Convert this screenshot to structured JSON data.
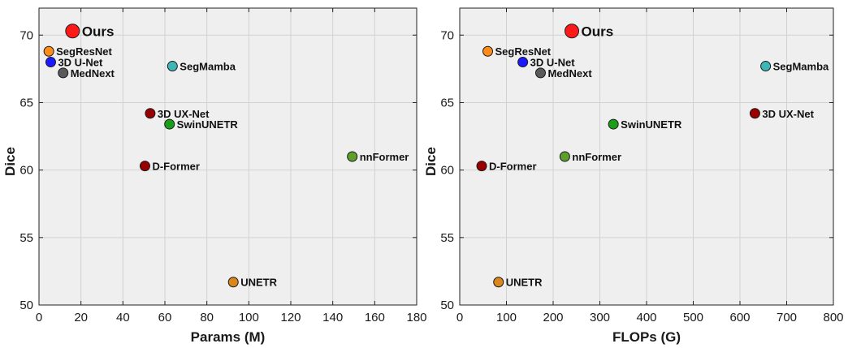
{
  "chart_data": [
    {
      "type": "scatter",
      "xlabel": "Params (M)",
      "ylabel": "Dice",
      "xlim": [
        0,
        180
      ],
      "ylim": [
        50,
        72
      ],
      "xticks": [
        0,
        20,
        40,
        60,
        80,
        100,
        120,
        140,
        160,
        180
      ],
      "yticks": [
        50,
        55,
        60,
        65,
        70
      ],
      "grid": true,
      "background": "#efefef",
      "points": [
        {
          "label": "Ours",
          "x": 16,
          "y": 70.3,
          "color": "#ff1a1a",
          "highlight": true
        },
        {
          "label": "SegResNet",
          "x": 4.7,
          "y": 68.8,
          "color": "#ff8c1a"
        },
        {
          "label": "3D U-Net",
          "x": 5.6,
          "y": 68.0,
          "color": "#1a1aff"
        },
        {
          "label": "MedNext",
          "x": 11.5,
          "y": 67.2,
          "color": "#5a5a5a"
        },
        {
          "label": "SegMamba",
          "x": 63.6,
          "y": 67.7,
          "color": "#3fb6b6"
        },
        {
          "label": "3D UX-Net",
          "x": 53.0,
          "y": 64.2,
          "color": "#990000"
        },
        {
          "label": "SwinUNETR",
          "x": 62.2,
          "y": 63.4,
          "color": "#1a9e1a"
        },
        {
          "label": "nnFormer",
          "x": 149.3,
          "y": 61.0,
          "color": "#5e9e2a"
        },
        {
          "label": "D-Former",
          "x": 50.5,
          "y": 60.3,
          "color": "#990000"
        },
        {
          "label": "UNETR",
          "x": 92.6,
          "y": 51.7,
          "color": "#d9861a"
        }
      ]
    },
    {
      "type": "scatter",
      "xlabel": "FLOPs (G)",
      "ylabel": "Dice",
      "xlim": [
        0,
        800
      ],
      "ylim": [
        50,
        72
      ],
      "xticks": [
        0,
        100,
        200,
        300,
        400,
        500,
        600,
        700,
        800
      ],
      "yticks": [
        50,
        55,
        60,
        65,
        70
      ],
      "grid": true,
      "background": "#efefef",
      "points": [
        {
          "label": "Ours",
          "x": 240,
          "y": 70.3,
          "color": "#ff1a1a",
          "highlight": true
        },
        {
          "label": "SegResNet",
          "x": 60,
          "y": 68.8,
          "color": "#ff8c1a"
        },
        {
          "label": "3D U-Net",
          "x": 135,
          "y": 68.0,
          "color": "#1a1aff"
        },
        {
          "label": "MedNext",
          "x": 173,
          "y": 67.2,
          "color": "#5a5a5a"
        },
        {
          "label": "SegMamba",
          "x": 655,
          "y": 67.7,
          "color": "#3fb6b6"
        },
        {
          "label": "3D UX-Net",
          "x": 632,
          "y": 64.2,
          "color": "#990000"
        },
        {
          "label": "SwinUNETR",
          "x": 329,
          "y": 63.4,
          "color": "#1a9e1a"
        },
        {
          "label": "nnFormer",
          "x": 225,
          "y": 61.0,
          "color": "#5e9e2a"
        },
        {
          "label": "D-Former",
          "x": 47,
          "y": 60.3,
          "color": "#990000"
        },
        {
          "label": "UNETR",
          "x": 83,
          "y": 51.7,
          "color": "#d9861a"
        }
      ]
    }
  ]
}
